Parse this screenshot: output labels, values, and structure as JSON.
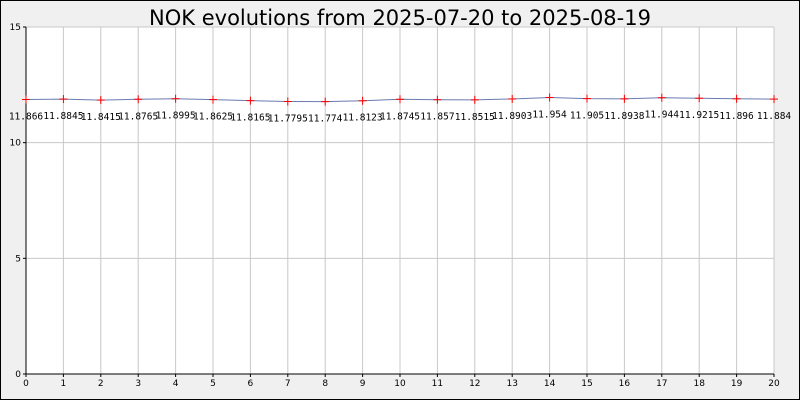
{
  "chart_data": {
    "type": "line",
    "title": "NOK evolutions from 2025-07-20 to 2025-08-19",
    "xlabel": "",
    "ylabel": "",
    "x": [
      0,
      1,
      2,
      3,
      4,
      5,
      6,
      7,
      8,
      9,
      10,
      11,
      12,
      13,
      14,
      15,
      16,
      17,
      18,
      19,
      20
    ],
    "values": [
      11.866,
      11.8845,
      11.8415,
      11.8765,
      11.8995,
      11.8625,
      11.8165,
      11.7795,
      11.774,
      11.8123,
      11.8745,
      11.857,
      11.8515,
      11.8903,
      11.954,
      11.905,
      11.8938,
      11.944,
      11.9215,
      11.896,
      11.884
    ],
    "data_labels": [
      "11.866",
      "11.8845",
      "11.8415",
      "11.8765",
      "11.8995",
      "11.8625",
      "11.8165",
      "11.7795",
      "11.774",
      "11.8123",
      "11.8745",
      "11.857",
      "11.8515",
      "11.8903",
      "11.954",
      "11.905",
      "11.8938",
      "11.944",
      "11.9215",
      "11.896",
      "11.884"
    ],
    "xlim": [
      0,
      20
    ],
    "ylim": [
      0,
      15
    ],
    "y_ticks": [
      0,
      5,
      10,
      15
    ],
    "grid": true,
    "line_color": "#6a7ab0",
    "marker_color": "#ff0000",
    "grid_color": "#c8c8c8",
    "plot_bg": "#ffffff",
    "outer_bg": "#f0f0f0"
  }
}
